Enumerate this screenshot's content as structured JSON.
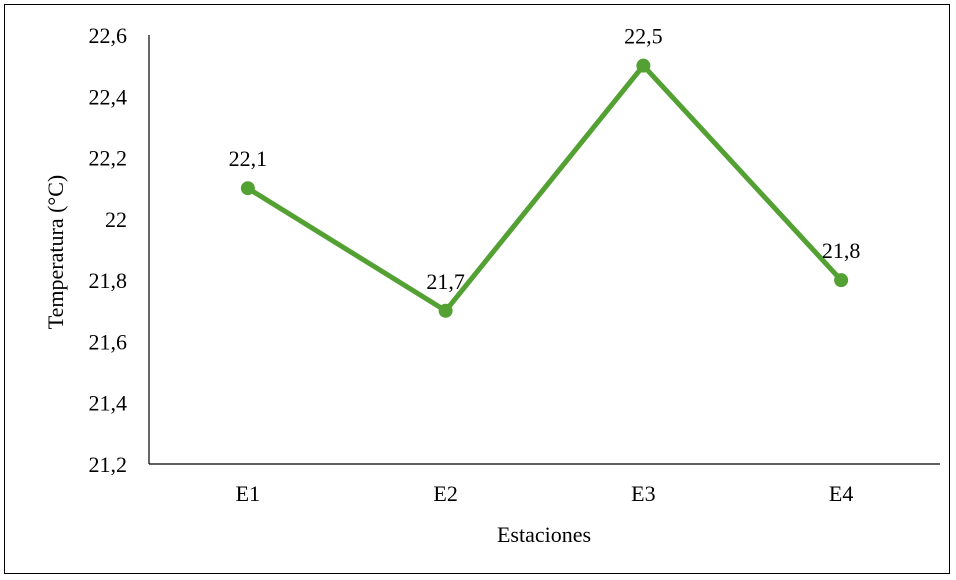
{
  "chart_data": {
    "type": "line",
    "categories": [
      "E1",
      "E2",
      "E3",
      "E4"
    ],
    "values": [
      22.1,
      21.7,
      22.5,
      21.8
    ],
    "data_labels": [
      "22,1",
      "21,7",
      "22,5",
      "21,8"
    ],
    "xlabel": "Estaciones",
    "ylabel": "Temperatura (°C)",
    "ylim": [
      21.2,
      22.6
    ],
    "yticks": [
      {
        "value": 21.2,
        "label": "21,2"
      },
      {
        "value": 21.4,
        "label": "21,4"
      },
      {
        "value": 21.6,
        "label": "21,6"
      },
      {
        "value": 21.8,
        "label": "21,8"
      },
      {
        "value": 22.0,
        "label": "22"
      },
      {
        "value": 22.2,
        "label": "22,2"
      },
      {
        "value": 22.4,
        "label": "22,4"
      },
      {
        "value": 22.6,
        "label": "22,6"
      }
    ],
    "grid": false,
    "legend": "none",
    "series_color": "#53A033"
  }
}
